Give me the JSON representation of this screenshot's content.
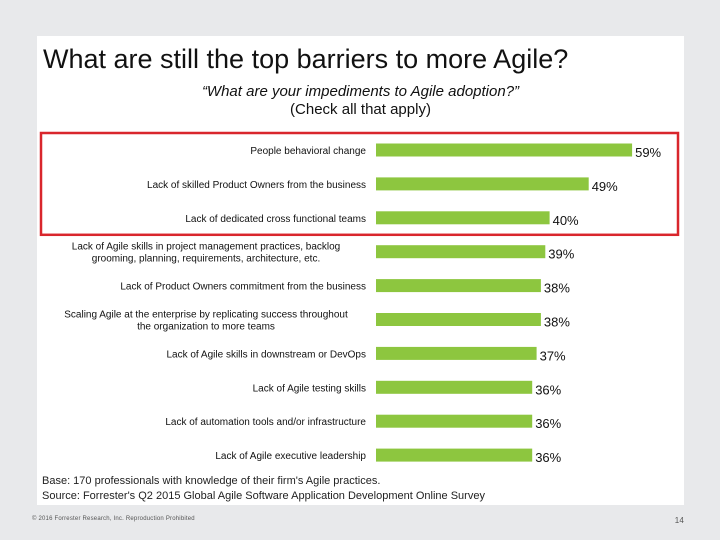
{
  "slide": {
    "title": "What are still the top barriers to more Agile?",
    "question": "“What are your impediments to Agile adoption?”",
    "instruction": "(Check all that apply)",
    "base_note": "Base: 170 professionals with knowledge of their firm's Agile practices.",
    "source_note": "Source: Forrester's Q2 2015 Global Agile Software Application Development Online Survey",
    "copyright": "© 2016 Forrester Research, Inc. Reproduction Prohibited",
    "page_number": "14"
  },
  "colors": {
    "bar": "#8dc63f",
    "highlight": "#d9262c",
    "text": "#111111",
    "background": "#e8e9eb"
  },
  "chart_data": {
    "type": "bar",
    "orientation": "horizontal",
    "categories": [
      [
        "People behavioral change"
      ],
      [
        "Lack of skilled Product Owners from the business"
      ],
      [
        "Lack of dedicated cross functional teams"
      ],
      [
        "Lack of Agile skills in project management practices, backlog",
        "grooming, planning, requirements, architecture, etc."
      ],
      [
        "Lack of Product Owners commitment from the business"
      ],
      [
        "Scaling Agile at the enterprise by replicating success throughout",
        "the organization to more teams"
      ],
      [
        "Lack of Agile skills in downstream or DevOps"
      ],
      [
        "Lack of Agile testing skills"
      ],
      [
        "Lack of automation tools and/or infrastructure"
      ],
      [
        "Lack of Agile executive leadership"
      ]
    ],
    "values": [
      59,
      49,
      40,
      39,
      38,
      38,
      37,
      36,
      36,
      36
    ],
    "value_labels": [
      "59%",
      "49%",
      "40%",
      "39%",
      "38%",
      "38%",
      "37%",
      "36%",
      "36%",
      "36%"
    ],
    "highlighted_count": 3
  }
}
